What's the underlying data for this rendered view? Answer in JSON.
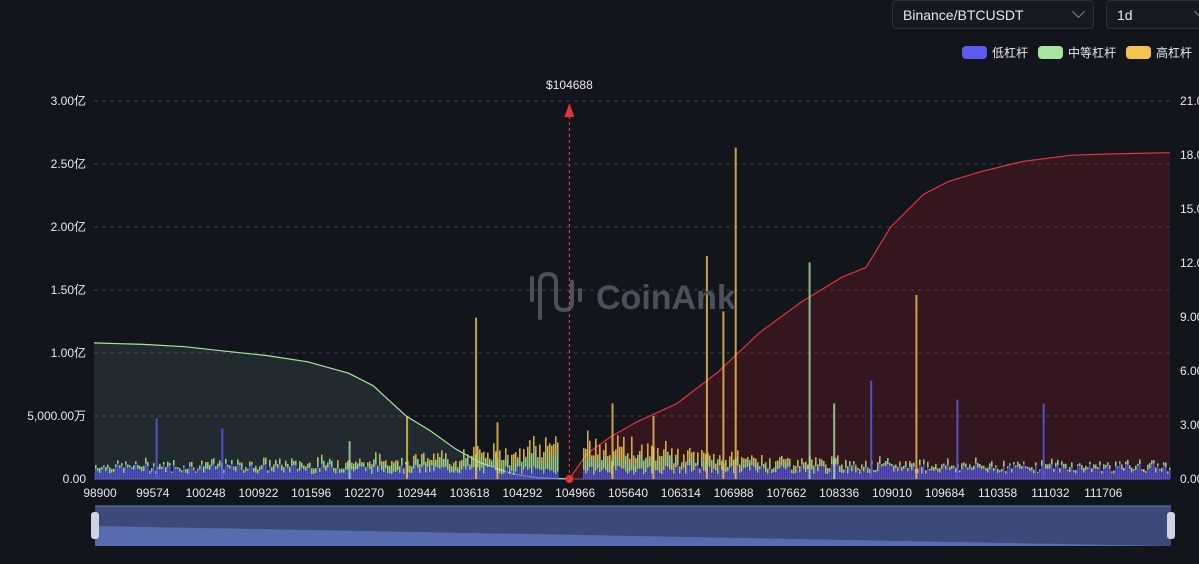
{
  "controls": {
    "exchange": "Binance/BTCUSDT",
    "period": "1d"
  },
  "colors": {
    "low": "#5b5bf0",
    "medium": "#a6e6a0",
    "high": "#f3c54e",
    "price_marker": "#e2343d",
    "cum_short": "#e2343d",
    "cum_long": "#a6e6a0"
  },
  "watermark": "CoinAnk",
  "chart_data": {
    "type": "bar",
    "title": "",
    "legend": {
      "placement": "top-right",
      "entries": [
        "低杠杆",
        "中等杠杆",
        "高杠杆"
      ]
    },
    "current_price": 104688,
    "current_price_label": "$104688",
    "x_tick_labels": [
      "98900",
      "99574",
      "100248",
      "100922",
      "101596",
      "102270",
      "102944",
      "103618",
      "104292",
      "104966",
      "105640",
      "106314",
      "106988",
      "107662",
      "108336",
      "109010",
      "109684",
      "110358",
      "111032",
      "111706"
    ],
    "x_range": [
      98900,
      112000
    ],
    "y_left": {
      "range": [
        0,
        300000000
      ],
      "tick_values": [
        0,
        50000000,
        100000000,
        150000000,
        200000000,
        250000000,
        300000000
      ],
      "tick_labels": [
        "0.00",
        "5,000.00万",
        "1.00亿",
        "1.50亿",
        "2.00亿",
        "2.50亿",
        "3.00亿"
      ]
    },
    "y_right": {
      "range": [
        0,
        2100000000
      ],
      "tick_values": [
        0,
        300000000,
        600000000,
        900000000,
        1200000000,
        1500000000,
        1800000000,
        2100000000
      ],
      "tick_labels": [
        "0.00",
        "3.00",
        "6.00",
        "9.00",
        "12.0",
        "15.0",
        "18.0",
        "21.0"
      ]
    },
    "grid": true,
    "cumulative_long": {
      "axis": "right",
      "x": [
        98900,
        99500,
        100000,
        100500,
        101000,
        101500,
        102000,
        102300,
        102700,
        103000,
        103300,
        103600,
        104000,
        104300,
        104688
      ],
      "y": [
        756000000,
        747600000,
        735000000,
        710000000,
        686000000,
        651000000,
        588000000,
        518000000,
        350000000,
        266000000,
        168000000,
        91000000,
        28000000,
        7000000,
        0
      ]
    },
    "cumulative_short": {
      "axis": "right",
      "x": [
        104688,
        104900,
        105200,
        105500,
        106000,
        106500,
        107000,
        107500,
        108000,
        108300,
        108600,
        109000,
        109300,
        109700,
        110200,
        110800,
        111300,
        112000
      ],
      "y": [
        0,
        140000000,
        238000000,
        315000000,
        420000000,
        595000000,
        812000000,
        980000000,
        1120000000,
        1176000000,
        1400000000,
        1582000000,
        1652000000,
        1708000000,
        1764000000,
        1799000000,
        1806000000,
        1813000000
      ]
    },
    "spikes": [
      {
        "x": 103540,
        "value": 128000000,
        "series": "高杠杆"
      },
      {
        "x": 103800,
        "value": 45000000,
        "series": "高杠杆"
      },
      {
        "x": 102700,
        "value": 50000000,
        "series": "高杠杆"
      },
      {
        "x": 102000,
        "value": 30000000,
        "series": "中等杠杆"
      },
      {
        "x": 99650,
        "value": 48000000,
        "series": "低杠杆"
      },
      {
        "x": 100450,
        "value": 40000000,
        "series": "低杠杆"
      },
      {
        "x": 105200,
        "value": 60000000,
        "series": "高杠杆"
      },
      {
        "x": 105700,
        "value": 50000000,
        "series": "高杠杆"
      },
      {
        "x": 106350,
        "value": 177000000,
        "series": "高杠杆"
      },
      {
        "x": 106550,
        "value": 133000000,
        "series": "高杠杆"
      },
      {
        "x": 106700,
        "value": 263000000,
        "series": "高杠杆"
      },
      {
        "x": 107600,
        "value": 172000000,
        "series": "中等杠杆"
      },
      {
        "x": 107900,
        "value": 60000000,
        "series": "中等杠杆"
      },
      {
        "x": 108350,
        "value": 78000000,
        "series": "低杠杆"
      },
      {
        "x": 108900,
        "value": 146000000,
        "series": "高杠杆"
      },
      {
        "x": 109400,
        "value": 63000000,
        "series": "低杠杆"
      },
      {
        "x": 110450,
        "value": 60000000,
        "series": "低杠杆"
      }
    ]
  }
}
